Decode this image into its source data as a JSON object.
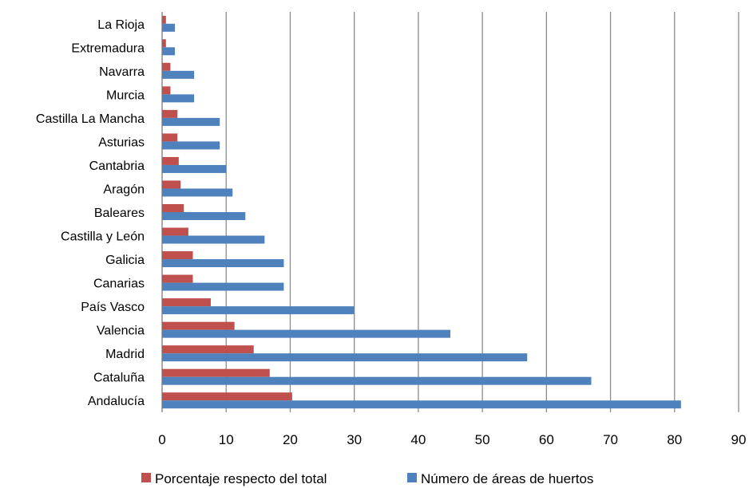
{
  "chart_data": {
    "type": "bar",
    "orientation": "horizontal",
    "categories": [
      "La Rioja",
      "Extremadura",
      "Navarra",
      "Murcia",
      "Castilla La Mancha",
      "Asturias",
      "Cantabria",
      "Aragón",
      "Baleares",
      "Castilla y León",
      "Galicia",
      "Canarias",
      "País Vasco",
      "Valencia",
      "Madrid",
      "Cataluña",
      "Andalucía"
    ],
    "series": [
      {
        "name": "Porcentaje respecto del total",
        "color": "#C0504D",
        "values": [
          0.6,
          0.6,
          1.3,
          1.3,
          2.4,
          2.4,
          2.6,
          2.9,
          3.4,
          4.1,
          4.8,
          4.8,
          7.6,
          11.3,
          14.3,
          16.8,
          20.3
        ]
      },
      {
        "name": "Número de áreas de huertos",
        "color": "#4F81BD",
        "values": [
          2,
          2,
          5,
          5,
          9,
          9,
          10,
          11,
          13,
          16,
          19,
          19,
          30,
          45,
          57,
          67,
          81
        ]
      }
    ],
    "xlim": [
      0,
      90
    ],
    "xticks": [
      "0",
      "10",
      "20",
      "30",
      "40",
      "50",
      "60",
      "70",
      "80",
      "90"
    ],
    "grid": true,
    "legend": "bottom",
    "title": "",
    "xlabel": "",
    "ylabel": ""
  }
}
